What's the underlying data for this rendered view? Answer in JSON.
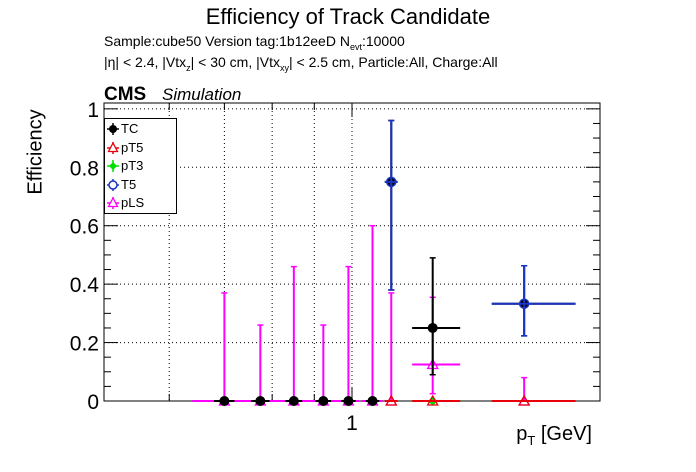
{
  "header": {
    "title": "Efficiency of Track Candidate",
    "info_line1_pre": "Sample:cube50   Version tag:1b12eeD  N",
    "info_line1_sub": "evt",
    "info_line1_post": ":10000",
    "info_line2_a": "|η| < 2.4, |Vtx",
    "info_line2_sub1": "z",
    "info_line2_b": "| < 30 cm, |Vtx",
    "info_line2_sub2": "xy",
    "info_line2_c": "| < 2.5 cm, Particle:All, Charge:All",
    "cms": "CMS",
    "simulation": "Simulation"
  },
  "axes": {
    "ylabel": "Efficiency",
    "xlabel_main": "p",
    "xlabel_sub": "T",
    "xlabel_unit": " [GeV]"
  },
  "chart_data": {
    "type": "scatter",
    "title": "Efficiency of Track Candidate",
    "xlabel": "pT [GeV]",
    "ylabel": "Efficiency",
    "x_scale": "log",
    "xlim": [
      0.5,
      2.0
    ],
    "ylim": [
      0,
      1.02
    ],
    "x_ticks": [
      1
    ],
    "x_tick_labels": [
      "1"
    ],
    "y_ticks": [
      0,
      0.2,
      0.4,
      0.6,
      0.8,
      1
    ],
    "y_tick_labels": [
      "0",
      "0.2",
      "0.4",
      "0.6",
      "0.8",
      "1"
    ],
    "grid": true,
    "legend_position": "top-left",
    "series": [
      {
        "name": "TC",
        "color": "#000000",
        "marker": "filled-circle",
        "points": [
          {
            "x": 0.7,
            "y": 0,
            "xerr": [
              0.02,
              0.02
            ],
            "yerr": [
              0,
              0
            ]
          },
          {
            "x": 0.774,
            "y": 0,
            "xerr": [
              0.02,
              0.02
            ],
            "yerr": [
              0,
              0
            ]
          },
          {
            "x": 0.85,
            "y": 0,
            "xerr": [
              0.02,
              0.02
            ],
            "yerr": [
              0,
              0
            ]
          },
          {
            "x": 0.923,
            "y": 0,
            "xerr": [
              0.02,
              0.02
            ],
            "yerr": [
              0,
              0
            ]
          },
          {
            "x": 0.99,
            "y": 0,
            "xerr": [
              0.02,
              0.02
            ],
            "yerr": [
              0,
              0
            ]
          },
          {
            "x": 1.059,
            "y": 0,
            "xerr": [
              0.02,
              0.02
            ],
            "yerr": [
              0,
              0
            ]
          },
          {
            "x": 1.116,
            "y": 0.75,
            "xerr": [
              0.02,
              0.02
            ],
            "yerr": [
              0.37,
              0.21
            ]
          },
          {
            "x": 1.253,
            "y": 0.25,
            "xerr": [
              0.07,
              0.1
            ],
            "yerr": [
              0.16,
              0.24
            ]
          },
          {
            "x": 1.618,
            "y": 0.333,
            "xerr": [
              0.14,
              0.25
            ],
            "yerr": [
              0.11,
              0.13
            ]
          }
        ]
      },
      {
        "name": "pT5",
        "color": "#e8000b",
        "marker": "open-triangle",
        "points": [
          {
            "x": 1.116,
            "y": 0,
            "xerr": [
              0.02,
              0.02
            ],
            "yerr": [
              0,
              0
            ]
          },
          {
            "x": 1.253,
            "y": 0,
            "xerr": [
              0.07,
              0.1
            ],
            "yerr": [
              0,
              0
            ]
          },
          {
            "x": 1.618,
            "y": 0,
            "xerr": [
              0.14,
              0.25
            ],
            "yerr": [
              0,
              0
            ]
          }
        ]
      },
      {
        "name": "pT3",
        "color": "#00e000",
        "marker": "filled-diamond",
        "points": [
          {
            "x": 1.253,
            "y": 0,
            "xerr": [
              0.07,
              0.1
            ],
            "yerr": [
              0,
              0
            ]
          }
        ]
      },
      {
        "name": "T5",
        "color": "#1a35c4",
        "marker": "open-circle",
        "points": [
          {
            "x": 1.116,
            "y": 0.75,
            "xerr": [
              0.02,
              0.02
            ],
            "yerr": [
              0.37,
              0.21
            ]
          },
          {
            "x": 1.618,
            "y": 0.333,
            "xerr": [
              0.14,
              0.25
            ],
            "yerr": [
              0.11,
              0.13
            ]
          }
        ]
      },
      {
        "name": "pLS",
        "color": "#ff00ff",
        "marker": "open-triangle",
        "points": [
          {
            "x": 0.7,
            "y": 0,
            "xerr": [
              0.06,
              0.06
            ],
            "yerr": [
              0,
              0.37
            ]
          },
          {
            "x": 0.774,
            "y": 0,
            "xerr": [
              0.04,
              0.04
            ],
            "yerr": [
              0,
              0.26
            ]
          },
          {
            "x": 0.85,
            "y": 0,
            "xerr": [
              0.04,
              0.04
            ],
            "yerr": [
              0,
              0.46
            ]
          },
          {
            "x": 0.923,
            "y": 0,
            "xerr": [
              0.04,
              0.04
            ],
            "yerr": [
              0,
              0.26
            ]
          },
          {
            "x": 0.99,
            "y": 0,
            "xerr": [
              0.03,
              0.03
            ],
            "yerr": [
              0,
              0.46
            ]
          },
          {
            "x": 1.059,
            "y": 0,
            "xerr": [
              0.03,
              0.03
            ],
            "yerr": [
              0,
              0.6
            ]
          },
          {
            "x": 1.116,
            "y": 0,
            "xerr": [
              0.02,
              0.02
            ],
            "yerr": [
              0,
              0.37
            ]
          },
          {
            "x": 1.253,
            "y": 0.125,
            "xerr": [
              0.07,
              0.1
            ],
            "yerr": [
              0.1,
              0.23
            ]
          },
          {
            "x": 1.618,
            "y": 0,
            "xerr": [
              0.14,
              0.25
            ],
            "yerr": [
              0,
              0.08
            ]
          }
        ]
      }
    ]
  }
}
